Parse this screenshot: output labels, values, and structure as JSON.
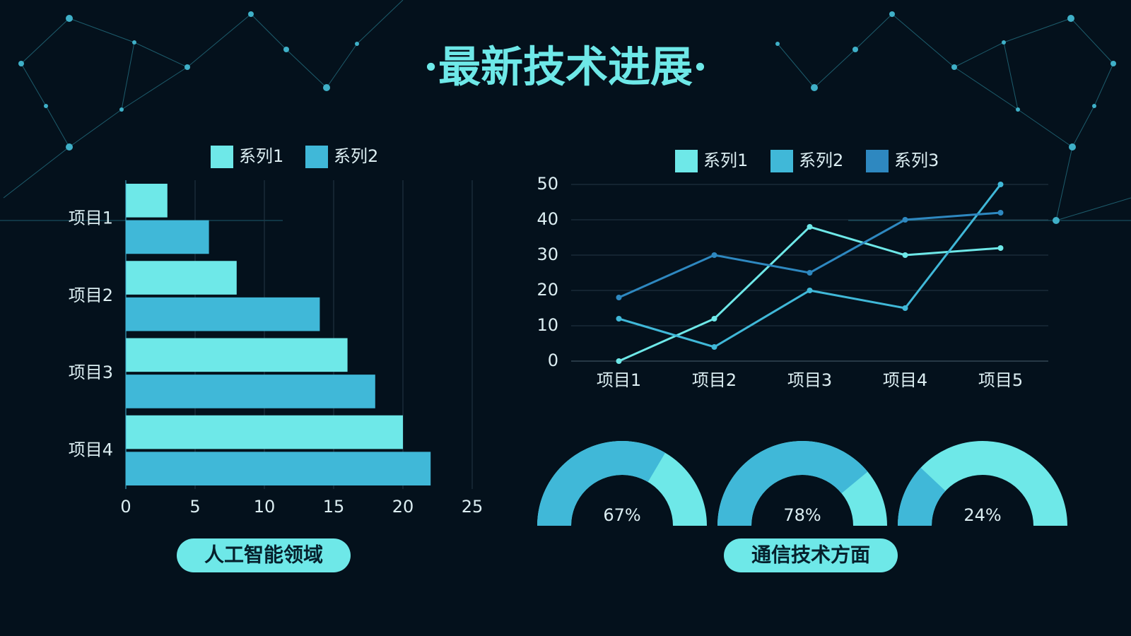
{
  "title": "·最新技术进展·",
  "captions": [
    "人工智能领域",
    "通信技术方面"
  ],
  "chart_data": [
    {
      "type": "bar",
      "orientation": "horizontal",
      "categories": [
        "项目1",
        "项目2",
        "项目3",
        "项目4"
      ],
      "series": [
        {
          "name": "系列1",
          "color": "#6ee8e8",
          "values": [
            3,
            8,
            16,
            20
          ]
        },
        {
          "name": "系列2",
          "color": "#40b8d8",
          "values": [
            6,
            14,
            18,
            22
          ]
        }
      ],
      "xlim": [
        0,
        25
      ],
      "xticks": [
        0,
        5,
        10,
        15,
        20,
        25
      ],
      "grid": true,
      "legend": "top"
    },
    {
      "type": "line",
      "categories": [
        "项目1",
        "项目2",
        "项目3",
        "项目4",
        "项目5"
      ],
      "series": [
        {
          "name": "系列1",
          "color": "#6ee8e8",
          "values": [
            0,
            12,
            38,
            30,
            32
          ]
        },
        {
          "name": "系列2",
          "color": "#40b8d8",
          "values": [
            12,
            4,
            20,
            15,
            50
          ]
        },
        {
          "name": "系列3",
          "color": "#2e88c0",
          "values": [
            18,
            30,
            25,
            40,
            42
          ]
        }
      ],
      "ylim": [
        0,
        50
      ],
      "yticks": [
        0,
        10,
        20,
        30,
        40,
        50
      ],
      "grid": true,
      "legend": "top"
    },
    {
      "type": "gauge",
      "values": [
        67,
        78,
        24
      ],
      "value_labels": [
        "67%",
        "78%",
        "24%"
      ],
      "color": "#40b8d8",
      "track_color": "#6ee8e8"
    }
  ]
}
